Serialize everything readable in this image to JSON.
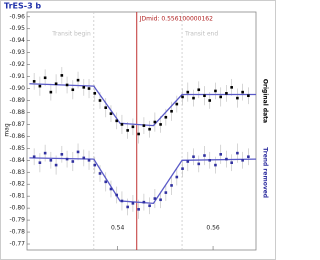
{
  "chart_data": {
    "type": "scatter",
    "title": "TrES-3 b",
    "y_label": "mag",
    "xlim": [
      0.521,
      0.569
    ],
    "xticks": [
      0.54,
      0.56
    ],
    "ylim": [
      -0.964,
      -0.765
    ],
    "y_inverted": true,
    "yticks": [
      -0.96,
      -0.95,
      -0.94,
      -0.93,
      -0.92,
      -0.91,
      {
        "value": -0.9,
        "label": "-0.90"
      },
      -0.89,
      -0.88,
      -0.87,
      -0.86,
      -0.85,
      -0.84,
      -0.83,
      -0.82,
      -0.81,
      {
        "value": -0.8,
        "label": "-0.80"
      },
      -0.79,
      -0.78,
      -0.77
    ],
    "x": [
      0.5225,
      0.5237,
      0.5248,
      0.526,
      0.5271,
      0.5283,
      0.5294,
      0.5306,
      0.5317,
      0.5329,
      0.534,
      0.5352,
      0.5363,
      0.5375,
      0.5386,
      0.5398,
      0.5409,
      0.5421,
      0.5432,
      0.5444,
      0.5455,
      0.5467,
      0.5478,
      0.549,
      0.5501,
      0.5513,
      0.5524,
      0.5536,
      0.5547,
      0.5559,
      0.557,
      0.5582,
      0.5593,
      0.5605,
      0.5616,
      0.5628,
      0.5639,
      0.5651,
      0.5662,
      0.5674
    ],
    "series": [
      {
        "name": "Original data",
        "color": "#000000",
        "values": [
          -0.906,
          -0.902,
          -0.909,
          -0.897,
          -0.904,
          -0.911,
          -0.903,
          -0.899,
          -0.907,
          -0.901,
          -0.9,
          -0.896,
          -0.89,
          -0.884,
          -0.879,
          -0.873,
          -0.87,
          -0.865,
          -0.868,
          -0.862,
          -0.869,
          -0.866,
          -0.872,
          -0.87,
          -0.876,
          -0.881,
          -0.887,
          -0.893,
          -0.897,
          -0.892,
          -0.899,
          -0.894,
          -0.89,
          -0.898,
          -0.893,
          -0.896,
          -0.901,
          -0.892,
          -0.897,
          -0.894
        ],
        "errors": [
          0.007,
          0.008,
          0.007,
          0.007,
          0.008,
          0.007,
          0.007,
          0.008,
          0.007,
          0.007,
          0.008,
          0.007,
          0.007,
          0.008,
          0.007,
          0.007,
          0.008,
          0.007,
          0.007,
          0.008,
          0.007,
          0.007,
          0.008,
          0.007,
          0.007,
          0.008,
          0.007,
          0.007,
          0.008,
          0.007,
          0.007,
          0.008,
          0.007,
          0.007,
          0.008,
          0.007,
          0.007,
          0.008,
          0.007,
          0.007
        ]
      },
      {
        "name": "Trend removed",
        "color": "#3030a0",
        "values": [
          -0.843,
          -0.838,
          -0.846,
          -0.84,
          -0.836,
          -0.845,
          -0.841,
          -0.839,
          -0.847,
          -0.842,
          -0.84,
          -0.836,
          -0.829,
          -0.822,
          -0.816,
          -0.811,
          -0.806,
          -0.801,
          -0.804,
          -0.799,
          -0.805,
          -0.802,
          -0.808,
          -0.807,
          -0.813,
          -0.819,
          -0.826,
          -0.833,
          -0.839,
          -0.843,
          -0.837,
          -0.844,
          -0.84,
          -0.836,
          -0.845,
          -0.841,
          -0.838,
          -0.846,
          -0.84,
          -0.843
        ],
        "errors": [
          0.007,
          0.008,
          0.007,
          0.007,
          0.008,
          0.007,
          0.007,
          0.008,
          0.007,
          0.007,
          0.008,
          0.007,
          0.007,
          0.008,
          0.007,
          0.007,
          0.008,
          0.007,
          0.007,
          0.008,
          0.007,
          0.007,
          0.008,
          0.007,
          0.007,
          0.008,
          0.007,
          0.007,
          0.008,
          0.007,
          0.007,
          0.008,
          0.007,
          0.007,
          0.008,
          0.007,
          0.007,
          0.008,
          0.007,
          0.007
        ]
      }
    ],
    "models": [
      {
        "color": "#5a5ac8",
        "x": [
          0.5215,
          0.535,
          0.5405,
          0.5475,
          0.5535,
          0.569
        ],
        "values": [
          -0.904,
          -0.902,
          -0.871,
          -0.869,
          -0.895,
          -0.895
        ]
      },
      {
        "color": "#5a5ac8",
        "x": [
          0.5215,
          0.535,
          0.5405,
          0.5475,
          0.5535,
          0.569
        ],
        "values": [
          -0.842,
          -0.841,
          -0.806,
          -0.804,
          -0.84,
          -0.841
        ]
      }
    ],
    "markers": [
      {
        "label": "Transit begin",
        "x": 0.535,
        "color": "#c8c8c8"
      },
      {
        "label": "Transit end",
        "x": 0.5535,
        "color": "#c8c8c8"
      },
      {
        "label": "JDmid: 0.556100000162",
        "x": 0.544,
        "color": "#c03030"
      }
    ]
  }
}
